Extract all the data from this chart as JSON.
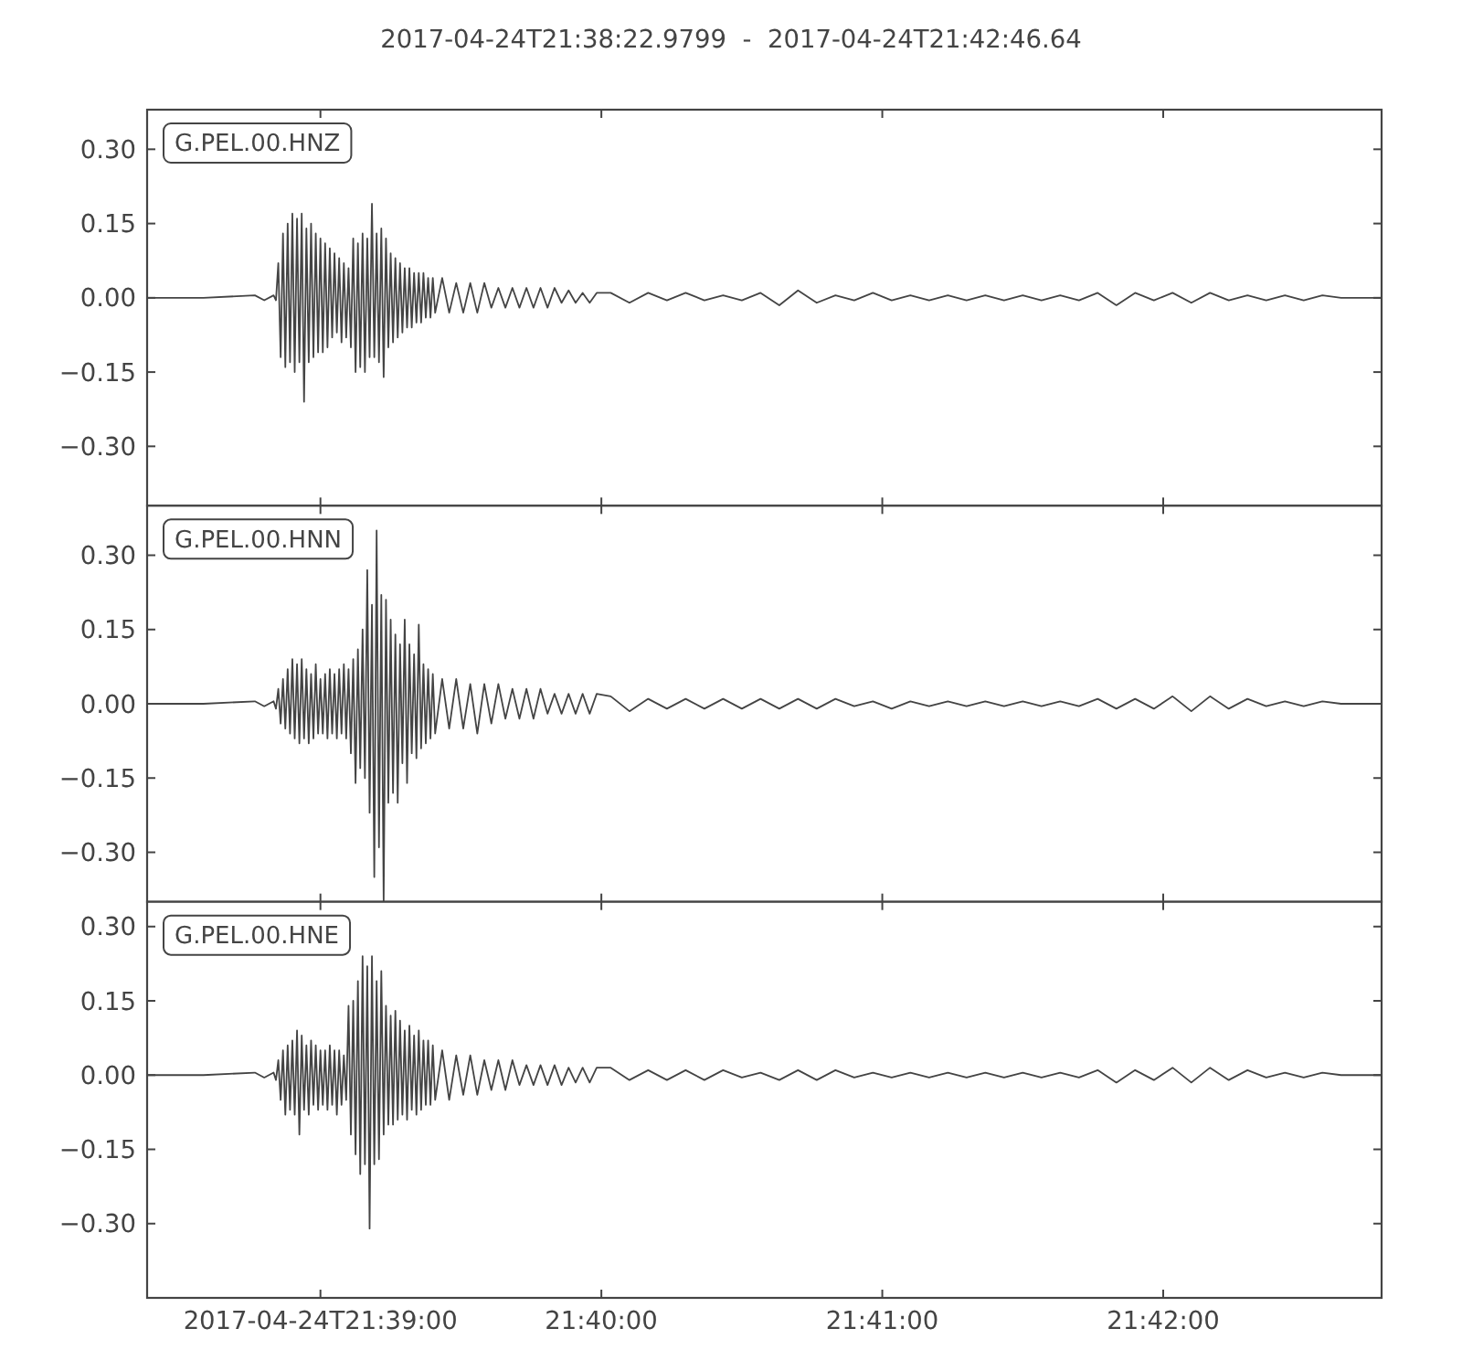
{
  "chart_data": [
    {
      "type": "line",
      "title": "2017-04-24T21:38:22.9799  -  2017-04-24T21:42:46.64",
      "annotations": [
        "G.PEL.00.HNZ"
      ],
      "color": "#444444",
      "x": [
        "2017-04-24T21:38:22.9799",
        "2017-04-24T21:38:35",
        "2017-04-24T21:38:46",
        "2017-04-24T21:38:48",
        "2017-04-24T21:38:50",
        "2017-04-24T21:38:50.5",
        "2017-04-24T21:38:51",
        "2017-04-24T21:38:51.5",
        "2017-04-24T21:38:52",
        "2017-04-24T21:38:52.5",
        "2017-04-24T21:38:53",
        "2017-04-24T21:38:53.5",
        "2017-04-24T21:38:54",
        "2017-04-24T21:38:54.5",
        "2017-04-24T21:38:55",
        "2017-04-24T21:38:55.5",
        "2017-04-24T21:38:56",
        "2017-04-24T21:38:56.5",
        "2017-04-24T21:38:57",
        "2017-04-24T21:38:57.5",
        "2017-04-24T21:38:58",
        "2017-04-24T21:38:58.5",
        "2017-04-24T21:38:59",
        "2017-04-24T21:38:59.5",
        "2017-04-24T21:39:00",
        "2017-04-24T21:39:00.5",
        "2017-04-24T21:39:01",
        "2017-04-24T21:39:01.5",
        "2017-04-24T21:39:02",
        "2017-04-24T21:39:02.5",
        "2017-04-24T21:39:03",
        "2017-04-24T21:39:03.5",
        "2017-04-24T21:39:04",
        "2017-04-24T21:39:04.5",
        "2017-04-24T21:39:05",
        "2017-04-24T21:39:05.5",
        "2017-04-24T21:39:06",
        "2017-04-24T21:39:06.5",
        "2017-04-24T21:39:07",
        "2017-04-24T21:39:07.5",
        "2017-04-24T21:39:08",
        "2017-04-24T21:39:08.5",
        "2017-04-24T21:39:09",
        "2017-04-24T21:39:09.5",
        "2017-04-24T21:39:10",
        "2017-04-24T21:39:10.5",
        "2017-04-24T21:39:11",
        "2017-04-24T21:39:11.5",
        "2017-04-24T21:39:12",
        "2017-04-24T21:39:12.5",
        "2017-04-24T21:39:13",
        "2017-04-24T21:39:13.5",
        "2017-04-24T21:39:14",
        "2017-04-24T21:39:14.5",
        "2017-04-24T21:39:15",
        "2017-04-24T21:39:15.5",
        "2017-04-24T21:39:16",
        "2017-04-24T21:39:16.5",
        "2017-04-24T21:39:17",
        "2017-04-24T21:39:17.5",
        "2017-04-24T21:39:18",
        "2017-04-24T21:39:18.5",
        "2017-04-24T21:39:19",
        "2017-04-24T21:39:19.5",
        "2017-04-24T21:39:20",
        "2017-04-24T21:39:20.5",
        "2017-04-24T21:39:21",
        "2017-04-24T21:39:21.5",
        "2017-04-24T21:39:22",
        "2017-04-24T21:39:22.5",
        "2017-04-24T21:39:23",
        "2017-04-24T21:39:23.5",
        "2017-04-24T21:39:24",
        "2017-04-24T21:39:24.5",
        "2017-04-24T21:39:26",
        "2017-04-24T21:39:27.5",
        "2017-04-24T21:39:29",
        "2017-04-24T21:39:30.5",
        "2017-04-24T21:39:32",
        "2017-04-24T21:39:33.5",
        "2017-04-24T21:39:35",
        "2017-04-24T21:39:36.5",
        "2017-04-24T21:39:38",
        "2017-04-24T21:39:39.5",
        "2017-04-24T21:39:41",
        "2017-04-24T21:39:42.5",
        "2017-04-24T21:39:44",
        "2017-04-24T21:39:45.5",
        "2017-04-24T21:39:47",
        "2017-04-24T21:39:48.5",
        "2017-04-24T21:39:50",
        "2017-04-24T21:39:51.5",
        "2017-04-24T21:39:53",
        "2017-04-24T21:39:54.5",
        "2017-04-24T21:39:56",
        "2017-04-24T21:39:57.5",
        "2017-04-24T21:39:59",
        "2017-04-24T21:40:02",
        "2017-04-24T21:40:06",
        "2017-04-24T21:40:10",
        "2017-04-24T21:40:14",
        "2017-04-24T21:40:18",
        "2017-04-24T21:40:22",
        "2017-04-24T21:40:26",
        "2017-04-24T21:40:30",
        "2017-04-24T21:40:34",
        "2017-04-24T21:40:38",
        "2017-04-24T21:40:42",
        "2017-04-24T21:40:46",
        "2017-04-24T21:40:50",
        "2017-04-24T21:40:54",
        "2017-04-24T21:40:58",
        "2017-04-24T21:41:02",
        "2017-04-24T21:41:06",
        "2017-04-24T21:41:10",
        "2017-04-24T21:41:14",
        "2017-04-24T21:41:18",
        "2017-04-24T21:41:22",
        "2017-04-24T21:41:26",
        "2017-04-24T21:41:30",
        "2017-04-24T21:41:34",
        "2017-04-24T21:41:38",
        "2017-04-24T21:41:42",
        "2017-04-24T21:41:46",
        "2017-04-24T21:41:50",
        "2017-04-24T21:41:54",
        "2017-04-24T21:41:58",
        "2017-04-24T21:42:02",
        "2017-04-24T21:42:06",
        "2017-04-24T21:42:10",
        "2017-04-24T21:42:14",
        "2017-04-24T21:42:18",
        "2017-04-24T21:42:22",
        "2017-04-24T21:42:26",
        "2017-04-24T21:42:30",
        "2017-04-24T21:42:34",
        "2017-04-24T21:42:38",
        "2017-04-24T21:42:42",
        "2017-04-24T21:42:46.64"
      ],
      "values": [
        0,
        0,
        0.005,
        -0.005,
        0.005,
        -0.005,
        0.07,
        -0.12,
        0.13,
        -0.14,
        0.15,
        -0.13,
        0.17,
        -0.15,
        0.16,
        -0.13,
        0.17,
        -0.21,
        0.14,
        -0.13,
        0.15,
        -0.12,
        0.13,
        -0.11,
        0.12,
        -0.11,
        0.11,
        -0.1,
        0.1,
        -0.08,
        0.09,
        -0.07,
        0.08,
        -0.09,
        0.07,
        -0.08,
        0.06,
        -0.1,
        0.12,
        -0.15,
        0.11,
        -0.14,
        0.13,
        -0.15,
        0.12,
        -0.12,
        0.19,
        -0.12,
        0.13,
        -0.13,
        0.14,
        -0.16,
        0.12,
        -0.1,
        0.09,
        -0.09,
        0.08,
        -0.08,
        0.07,
        -0.07,
        0.06,
        -0.06,
        0.06,
        -0.06,
        0.05,
        -0.05,
        0.05,
        -0.05,
        0.05,
        -0.04,
        0.04,
        -0.04,
        0.04,
        -0.03,
        0.04,
        -0.03,
        0.03,
        -0.03,
        0.03,
        -0.03,
        0.03,
        -0.02,
        0.02,
        -0.02,
        0.02,
        -0.02,
        0.02,
        -0.02,
        0.02,
        -0.02,
        0.02,
        -0.01,
        0.015,
        -0.01,
        0.01,
        -0.01,
        0.01,
        0.01,
        -0.01,
        0.01,
        -0.005,
        0.01,
        -0.005,
        0.005,
        -0.005,
        0.01,
        -0.015,
        0.015,
        -0.01,
        0.005,
        -0.005,
        0.01,
        -0.005,
        0.005,
        -0.005,
        0.005,
        -0.005,
        0.005,
        -0.005,
        0.005,
        -0.005,
        0.005,
        -0.005,
        0.01,
        -0.015,
        0.01,
        -0.005,
        0.01,
        -0.01,
        0.01,
        -0.005,
        0.005,
        -0.005,
        0.005,
        -0.005,
        0.005,
        0,
        0,
        0
      ],
      "xlim": [
        "2017-04-24T21:38:22.9799",
        "2017-04-24T21:42:46.64"
      ],
      "xticks": [
        "2017-04-24T21:39:00",
        "2017-04-24T21:40:00",
        "2017-04-24T21:41:00",
        "2017-04-24T21:42:00"
      ],
      "ylim": [
        -0.42,
        0.38
      ],
      "yticks": [
        {
          "value": -0.3,
          "label": "−0.30"
        },
        {
          "value": -0.15,
          "label": "−0.15"
        },
        {
          "value": 0,
          "label": "0.00"
        },
        {
          "value": 0.15,
          "label": "0.15"
        },
        {
          "value": 0.3,
          "label": "0.30"
        }
      ],
      "tick_labels": "y"
    },
    {
      "type": "line",
      "annotations": [
        "G.PEL.00.HNN"
      ],
      "color": "#444444",
      "x": [
        "2017-04-24T21:38:22.9799",
        "2017-04-24T21:38:35",
        "2017-04-24T21:38:46",
        "2017-04-24T21:38:48",
        "2017-04-24T21:38:50",
        "2017-04-24T21:38:50.5",
        "2017-04-24T21:38:51",
        "2017-04-24T21:38:51.5",
        "2017-04-24T21:38:52",
        "2017-04-24T21:38:52.5",
        "2017-04-24T21:38:53",
        "2017-04-24T21:38:53.5",
        "2017-04-24T21:38:54",
        "2017-04-24T21:38:54.5",
        "2017-04-24T21:38:55",
        "2017-04-24T21:38:55.5",
        "2017-04-24T21:38:56",
        "2017-04-24T21:38:56.5",
        "2017-04-24T21:38:57",
        "2017-04-24T21:38:57.5",
        "2017-04-24T21:38:58",
        "2017-04-24T21:38:58.5",
        "2017-04-24T21:38:59",
        "2017-04-24T21:38:59.5",
        "2017-04-24T21:39:00",
        "2017-04-24T21:39:00.5",
        "2017-04-24T21:39:01",
        "2017-04-24T21:39:01.5",
        "2017-04-24T21:39:02",
        "2017-04-24T21:39:02.5",
        "2017-04-24T21:39:03",
        "2017-04-24T21:39:03.5",
        "2017-04-24T21:39:04",
        "2017-04-24T21:39:04.5",
        "2017-04-24T21:39:05",
        "2017-04-24T21:39:05.5",
        "2017-04-24T21:39:06",
        "2017-04-24T21:39:06.5",
        "2017-04-24T21:39:07",
        "2017-04-24T21:39:07.5",
        "2017-04-24T21:39:08",
        "2017-04-24T21:39:08.5",
        "2017-04-24T21:39:09",
        "2017-04-24T21:39:09.5",
        "2017-04-24T21:39:10",
        "2017-04-24T21:39:10.5",
        "2017-04-24T21:39:11",
        "2017-04-24T21:39:11.5",
        "2017-04-24T21:39:12",
        "2017-04-24T21:39:12.5",
        "2017-04-24T21:39:13",
        "2017-04-24T21:39:13.5",
        "2017-04-24T21:39:14",
        "2017-04-24T21:39:14.5",
        "2017-04-24T21:39:15",
        "2017-04-24T21:39:15.5",
        "2017-04-24T21:39:16",
        "2017-04-24T21:39:16.5",
        "2017-04-24T21:39:17",
        "2017-04-24T21:39:17.5",
        "2017-04-24T21:39:18",
        "2017-04-24T21:39:18.5",
        "2017-04-24T21:39:19",
        "2017-04-24T21:39:19.5",
        "2017-04-24T21:39:20",
        "2017-04-24T21:39:20.5",
        "2017-04-24T21:39:21",
        "2017-04-24T21:39:21.5",
        "2017-04-24T21:39:22",
        "2017-04-24T21:39:22.5",
        "2017-04-24T21:39:23",
        "2017-04-24T21:39:23.5",
        "2017-04-24T21:39:24",
        "2017-04-24T21:39:24.5",
        "2017-04-24T21:39:26",
        "2017-04-24T21:39:27.5",
        "2017-04-24T21:39:29",
        "2017-04-24T21:39:30.5",
        "2017-04-24T21:39:32",
        "2017-04-24T21:39:33.5",
        "2017-04-24T21:39:35",
        "2017-04-24T21:39:36.5",
        "2017-04-24T21:39:38",
        "2017-04-24T21:39:39.5",
        "2017-04-24T21:39:41",
        "2017-04-24T21:39:42.5",
        "2017-04-24T21:39:44",
        "2017-04-24T21:39:45.5",
        "2017-04-24T21:39:47",
        "2017-04-24T21:39:48.5",
        "2017-04-24T21:39:50",
        "2017-04-24T21:39:51.5",
        "2017-04-24T21:39:53",
        "2017-04-24T21:39:54.5",
        "2017-04-24T21:39:56",
        "2017-04-24T21:39:57.5",
        "2017-04-24T21:39:59",
        "2017-04-24T21:40:02",
        "2017-04-24T21:40:06",
        "2017-04-24T21:40:10",
        "2017-04-24T21:40:14",
        "2017-04-24T21:40:18",
        "2017-04-24T21:40:22",
        "2017-04-24T21:40:26",
        "2017-04-24T21:40:30",
        "2017-04-24T21:40:34",
        "2017-04-24T21:40:38",
        "2017-04-24T21:40:42",
        "2017-04-24T21:40:46",
        "2017-04-24T21:40:50",
        "2017-04-24T21:40:54",
        "2017-04-24T21:40:58",
        "2017-04-24T21:41:02",
        "2017-04-24T21:41:06",
        "2017-04-24T21:41:10",
        "2017-04-24T21:41:14",
        "2017-04-24T21:41:18",
        "2017-04-24T21:41:22",
        "2017-04-24T21:41:26",
        "2017-04-24T21:41:30",
        "2017-04-24T21:41:34",
        "2017-04-24T21:41:38",
        "2017-04-24T21:41:42",
        "2017-04-24T21:41:46",
        "2017-04-24T21:41:50",
        "2017-04-24T21:41:54",
        "2017-04-24T21:41:58",
        "2017-04-24T21:42:02",
        "2017-04-24T21:42:06",
        "2017-04-24T21:42:10",
        "2017-04-24T21:42:14",
        "2017-04-24T21:42:18",
        "2017-04-24T21:42:22",
        "2017-04-24T21:42:26",
        "2017-04-24T21:42:30",
        "2017-04-24T21:42:34",
        "2017-04-24T21:42:38",
        "2017-04-24T21:42:42",
        "2017-04-24T21:42:46.64"
      ],
      "values": [
        0,
        0,
        0.005,
        -0.005,
        0.005,
        -0.01,
        0.03,
        -0.04,
        0.05,
        -0.05,
        0.07,
        -0.06,
        0.09,
        -0.07,
        0.08,
        -0.08,
        0.09,
        -0.07,
        0.07,
        -0.08,
        0.06,
        -0.07,
        0.08,
        -0.06,
        0.05,
        -0.06,
        0.06,
        -0.07,
        0.07,
        -0.06,
        0.06,
        -0.07,
        0.07,
        -0.06,
        0.08,
        -0.07,
        0.07,
        -0.1,
        0.09,
        -0.16,
        0.11,
        -0.13,
        0.15,
        -0.15,
        0.27,
        -0.22,
        0.2,
        -0.35,
        0.35,
        -0.29,
        0.22,
        -0.4,
        0.21,
        -0.2,
        0.17,
        -0.18,
        0.14,
        -0.2,
        0.12,
        -0.12,
        0.17,
        -0.16,
        0.12,
        -0.1,
        0.1,
        -0.11,
        0.16,
        -0.09,
        0.08,
        -0.08,
        0.07,
        -0.07,
        0.06,
        -0.06,
        0.05,
        -0.05,
        0.05,
        -0.05,
        0.04,
        -0.06,
        0.04,
        -0.04,
        0.04,
        -0.03,
        0.03,
        -0.03,
        0.03,
        -0.03,
        0.03,
        -0.02,
        0.02,
        -0.02,
        0.02,
        -0.02,
        0.02,
        -0.02,
        0.02,
        0.015,
        -0.015,
        0.01,
        -0.01,
        0.01,
        -0.01,
        0.01,
        -0.01,
        0.01,
        -0.01,
        0.01,
        -0.01,
        0.01,
        -0.005,
        0.005,
        -0.01,
        0.005,
        -0.005,
        0.005,
        -0.005,
        0.005,
        -0.005,
        0.005,
        -0.005,
        0.005,
        -0.005,
        0.01,
        -0.01,
        0.01,
        -0.01,
        0.015,
        -0.015,
        0.015,
        -0.01,
        0.01,
        -0.005,
        0.005,
        -0.005,
        0.005,
        0,
        0,
        0
      ],
      "xlim": [
        "2017-04-24T21:38:22.9799",
        "2017-04-24T21:42:46.64"
      ],
      "xticks": [
        "2017-04-24T21:39:00",
        "2017-04-24T21:40:00",
        "2017-04-24T21:41:00",
        "2017-04-24T21:42:00"
      ],
      "ylim": [
        -0.4,
        0.4
      ],
      "yticks": [
        {
          "value": -0.3,
          "label": "−0.30"
        },
        {
          "value": -0.15,
          "label": "−0.15"
        },
        {
          "value": 0,
          "label": "0.00"
        },
        {
          "value": 0.15,
          "label": "0.15"
        },
        {
          "value": 0.3,
          "label": "0.30"
        }
      ],
      "tick_labels": "y"
    },
    {
      "type": "line",
      "annotations": [
        "G.PEL.00.HNE"
      ],
      "color": "#444444",
      "x": [
        "2017-04-24T21:38:22.9799",
        "2017-04-24T21:38:35",
        "2017-04-24T21:38:46",
        "2017-04-24T21:38:48",
        "2017-04-24T21:38:50",
        "2017-04-24T21:38:50.5",
        "2017-04-24T21:38:51",
        "2017-04-24T21:38:51.5",
        "2017-04-24T21:38:52",
        "2017-04-24T21:38:52.5",
        "2017-04-24T21:38:53",
        "2017-04-24T21:38:53.5",
        "2017-04-24T21:38:54",
        "2017-04-24T21:38:54.5",
        "2017-04-24T21:38:55",
        "2017-04-24T21:38:55.5",
        "2017-04-24T21:38:56",
        "2017-04-24T21:38:56.5",
        "2017-04-24T21:38:57",
        "2017-04-24T21:38:57.5",
        "2017-04-24T21:38:58",
        "2017-04-24T21:38:58.5",
        "2017-04-24T21:38:59",
        "2017-04-24T21:38:59.5",
        "2017-04-24T21:39:00",
        "2017-04-24T21:39:00.5",
        "2017-04-24T21:39:01",
        "2017-04-24T21:39:01.5",
        "2017-04-24T21:39:02",
        "2017-04-24T21:39:02.5",
        "2017-04-24T21:39:03",
        "2017-04-24T21:39:03.5",
        "2017-04-24T21:39:04",
        "2017-04-24T21:39:04.5",
        "2017-04-24T21:39:05",
        "2017-04-24T21:39:05.5",
        "2017-04-24T21:39:06",
        "2017-04-24T21:39:06.5",
        "2017-04-24T21:39:07",
        "2017-04-24T21:39:07.5",
        "2017-04-24T21:39:08",
        "2017-04-24T21:39:08.5",
        "2017-04-24T21:39:09",
        "2017-04-24T21:39:09.5",
        "2017-04-24T21:39:10",
        "2017-04-24T21:39:10.5",
        "2017-04-24T21:39:11",
        "2017-04-24T21:39:11.5",
        "2017-04-24T21:39:12",
        "2017-04-24T21:39:12.5",
        "2017-04-24T21:39:13",
        "2017-04-24T21:39:13.5",
        "2017-04-24T21:39:14",
        "2017-04-24T21:39:14.5",
        "2017-04-24T21:39:15",
        "2017-04-24T21:39:15.5",
        "2017-04-24T21:39:16",
        "2017-04-24T21:39:16.5",
        "2017-04-24T21:39:17",
        "2017-04-24T21:39:17.5",
        "2017-04-24T21:39:18",
        "2017-04-24T21:39:18.5",
        "2017-04-24T21:39:19",
        "2017-04-24T21:39:19.5",
        "2017-04-24T21:39:20",
        "2017-04-24T21:39:20.5",
        "2017-04-24T21:39:21",
        "2017-04-24T21:39:21.5",
        "2017-04-24T21:39:22",
        "2017-04-24T21:39:22.5",
        "2017-04-24T21:39:23",
        "2017-04-24T21:39:23.5",
        "2017-04-24T21:39:24",
        "2017-04-24T21:39:24.5",
        "2017-04-24T21:39:26",
        "2017-04-24T21:39:27.5",
        "2017-04-24T21:39:29",
        "2017-04-24T21:39:30.5",
        "2017-04-24T21:39:32",
        "2017-04-24T21:39:33.5",
        "2017-04-24T21:39:35",
        "2017-04-24T21:39:36.5",
        "2017-04-24T21:39:38",
        "2017-04-24T21:39:39.5",
        "2017-04-24T21:39:41",
        "2017-04-24T21:39:42.5",
        "2017-04-24T21:39:44",
        "2017-04-24T21:39:45.5",
        "2017-04-24T21:39:47",
        "2017-04-24T21:39:48.5",
        "2017-04-24T21:39:50",
        "2017-04-24T21:39:51.5",
        "2017-04-24T21:39:53",
        "2017-04-24T21:39:54.5",
        "2017-04-24T21:39:56",
        "2017-04-24T21:39:57.5",
        "2017-04-24T21:39:59",
        "2017-04-24T21:40:02",
        "2017-04-24T21:40:06",
        "2017-04-24T21:40:10",
        "2017-04-24T21:40:14",
        "2017-04-24T21:40:18",
        "2017-04-24T21:40:22",
        "2017-04-24T21:40:26",
        "2017-04-24T21:40:30",
        "2017-04-24T21:40:34",
        "2017-04-24T21:40:38",
        "2017-04-24T21:40:42",
        "2017-04-24T21:40:46",
        "2017-04-24T21:40:50",
        "2017-04-24T21:40:54",
        "2017-04-24T21:40:58",
        "2017-04-24T21:41:02",
        "2017-04-24T21:41:06",
        "2017-04-24T21:41:10",
        "2017-04-24T21:41:14",
        "2017-04-24T21:41:18",
        "2017-04-24T21:41:22",
        "2017-04-24T21:41:26",
        "2017-04-24T21:41:30",
        "2017-04-24T21:41:34",
        "2017-04-24T21:41:38",
        "2017-04-24T21:41:42",
        "2017-04-24T21:41:46",
        "2017-04-24T21:41:50",
        "2017-04-24T21:41:54",
        "2017-04-24T21:41:58",
        "2017-04-24T21:42:02",
        "2017-04-24T21:42:06",
        "2017-04-24T21:42:10",
        "2017-04-24T21:42:14",
        "2017-04-24T21:42:18",
        "2017-04-24T21:42:22",
        "2017-04-24T21:42:26",
        "2017-04-24T21:42:30",
        "2017-04-24T21:42:34",
        "2017-04-24T21:42:38",
        "2017-04-24T21:42:42",
        "2017-04-24T21:42:46.64"
      ],
      "values": [
        0,
        0,
        0.005,
        -0.005,
        0.005,
        -0.01,
        0.03,
        -0.05,
        0.05,
        -0.08,
        0.06,
        -0.07,
        0.07,
        -0.08,
        0.09,
        -0.12,
        0.08,
        -0.07,
        0.06,
        -0.08,
        0.07,
        -0.06,
        0.06,
        -0.07,
        0.05,
        -0.06,
        0.05,
        -0.07,
        0.06,
        -0.06,
        0.05,
        -0.08,
        0.05,
        -0.06,
        0.04,
        -0.05,
        0.14,
        -0.12,
        0.15,
        -0.16,
        0.19,
        -0.2,
        0.24,
        -0.18,
        0.22,
        -0.31,
        0.24,
        -0.18,
        0.19,
        -0.17,
        0.21,
        -0.12,
        0.14,
        -0.1,
        0.12,
        -0.1,
        0.13,
        -0.09,
        0.11,
        -0.08,
        0.09,
        -0.09,
        0.1,
        -0.07,
        0.08,
        -0.08,
        0.09,
        -0.07,
        0.07,
        -0.06,
        0.07,
        -0.06,
        0.06,
        -0.05,
        0.05,
        -0.05,
        0.04,
        -0.04,
        0.04,
        -0.04,
        0.03,
        -0.03,
        0.03,
        -0.03,
        0.03,
        -0.02,
        0.02,
        -0.02,
        0.02,
        -0.02,
        0.02,
        -0.02,
        0.015,
        -0.015,
        0.015,
        -0.015,
        0.015,
        0.015,
        -0.01,
        0.01,
        -0.01,
        0.01,
        -0.01,
        0.01,
        -0.005,
        0.005,
        -0.01,
        0.01,
        -0.01,
        0.01,
        -0.005,
        0.005,
        -0.005,
        0.005,
        -0.005,
        0.005,
        -0.005,
        0.005,
        -0.005,
        0.005,
        -0.005,
        0.005,
        -0.005,
        0.01,
        -0.015,
        0.01,
        -0.01,
        0.015,
        -0.015,
        0.015,
        -0.01,
        0.01,
        -0.005,
        0.005,
        -0.005,
        0.005,
        0,
        0,
        0
      ],
      "xlim": [
        "2017-04-24T21:38:22.9799",
        "2017-04-24T21:42:46.64"
      ],
      "xticks": [
        {
          "value": "2017-04-24T21:39:00",
          "label": "2017-04-24T21:39:00"
        },
        {
          "value": "2017-04-24T21:40:00",
          "label": "21:40:00"
        },
        {
          "value": "2017-04-24T21:41:00",
          "label": "21:41:00"
        },
        {
          "value": "2017-04-24T21:42:00",
          "label": "21:42:00"
        }
      ],
      "ylim": [
        -0.45,
        0.35
      ],
      "yticks": [
        {
          "value": -0.3,
          "label": "−0.30"
        },
        {
          "value": -0.15,
          "label": "−0.15"
        },
        {
          "value": 0,
          "label": "0.00"
        },
        {
          "value": 0.15,
          "label": "0.15"
        },
        {
          "value": 0.3,
          "label": "0.30"
        }
      ]
    }
  ]
}
